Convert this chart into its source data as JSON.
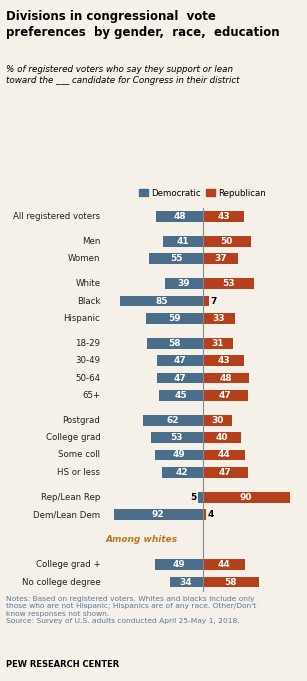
{
  "title": "Divisions in congressional  vote\npreferences  by gender,  race,  education",
  "subtitle": "% of registered voters who say they support or lean\ntoward the ___ candidate for Congress in their district",
  "legend_dem": "Democratic",
  "legend_rep": "Republican",
  "categories": [
    "All registered voters",
    "Men",
    "Women",
    "White",
    "Black",
    "Hispanic",
    "18-29",
    "30-49",
    "50-64",
    "65+",
    "Postgrad",
    "College grad",
    "Some coll",
    "HS or less",
    "Rep/Lean Rep",
    "Dem/Lean Dem",
    "AMONG_WHITES",
    "College grad +",
    "No college degree"
  ],
  "dem_values": [
    48,
    41,
    55,
    39,
    85,
    59,
    58,
    47,
    47,
    45,
    62,
    53,
    49,
    42,
    5,
    92,
    null,
    49,
    34
  ],
  "rep_values": [
    43,
    50,
    37,
    53,
    7,
    33,
    31,
    43,
    48,
    47,
    30,
    40,
    44,
    47,
    90,
    4,
    null,
    44,
    58
  ],
  "dem_color": "#4a6e8a",
  "rep_color": "#b5401c",
  "among_whites_color": "#c07820",
  "bg_color": "#f5f0e8",
  "text_color": "#222222",
  "notes_color": "#5a7aa0",
  "bar_height": 0.62,
  "notes": "Notes: Based on registered voters. Whites and blacks include only\nthose who are not Hispanic; Hispanics are of any race. Other/Don't\nknow responses not shown.\nSource: Survey of U.S. adults conducted April 25-May 1, 2018.",
  "source_bold": "PEW RESEARCH CENTER",
  "group_breaks_before": [
    1,
    3,
    6,
    10,
    14,
    16,
    17
  ],
  "xlim_left": -100,
  "xlim_right": 100
}
